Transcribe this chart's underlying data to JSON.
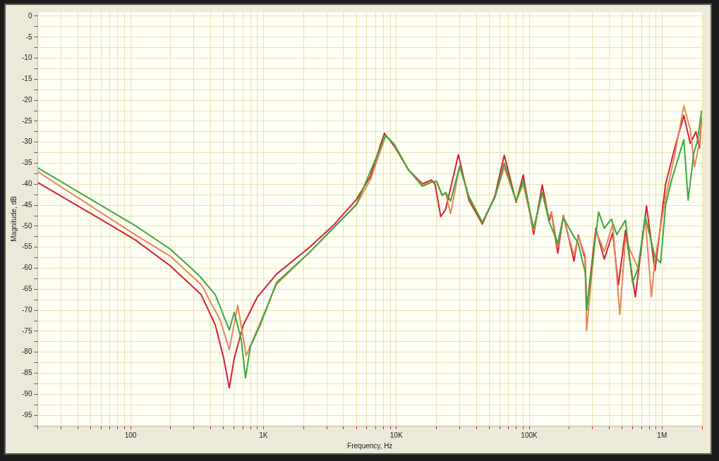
{
  "chart_data": {
    "type": "line",
    "xlabel": "Frequency, Hz",
    "ylabel": "Magnitude, dB",
    "log": "x",
    "grid": true,
    "marker": "none",
    "xlim": [
      20,
      2000000
    ],
    "ylim": [
      -97.5,
      1
    ],
    "xticks": [
      {
        "value": 20,
        "label": null
      },
      {
        "value": 30,
        "label": null
      },
      {
        "value": 40,
        "label": null
      },
      {
        "value": 50,
        "label": null
      },
      {
        "value": 60,
        "label": null
      },
      {
        "value": 70,
        "label": null
      },
      {
        "value": 80,
        "label": null
      },
      {
        "value": 90,
        "label": null
      },
      100,
      {
        "value": 200,
        "label": null
      },
      {
        "value": 300,
        "label": null
      },
      {
        "value": 400,
        "label": null
      },
      {
        "value": 500,
        "label": null
      },
      {
        "value": 600,
        "label": null
      },
      {
        "value": 700,
        "label": null
      },
      {
        "value": 800,
        "label": null
      },
      {
        "value": 900,
        "label": null
      },
      {
        "value": 1000,
        "label": "1K"
      },
      {
        "value": 2000,
        "label": null
      },
      {
        "value": 3000,
        "label": null
      },
      {
        "value": 4000,
        "label": null
      },
      {
        "value": 5000,
        "label": null
      },
      {
        "value": 6000,
        "label": null
      },
      {
        "value": 7000,
        "label": null
      },
      {
        "value": 8000,
        "label": null
      },
      {
        "value": 9000,
        "label": null
      },
      {
        "value": 10000,
        "label": "10K"
      },
      {
        "value": 20000,
        "label": null
      },
      {
        "value": 30000,
        "label": null
      },
      {
        "value": 40000,
        "label": null
      },
      {
        "value": 50000,
        "label": null
      },
      {
        "value": 60000,
        "label": null
      },
      {
        "value": 70000,
        "label": null
      },
      {
        "value": 80000,
        "label": null
      },
      {
        "value": 90000,
        "label": null
      },
      {
        "value": 100000,
        "label": "100K"
      },
      {
        "value": 200000,
        "label": null
      },
      {
        "value": 300000,
        "label": null
      },
      {
        "value": 400000,
        "label": null
      },
      {
        "value": 500000,
        "label": null
      },
      {
        "value": 600000,
        "label": null
      },
      {
        "value": 700000,
        "label": null
      },
      {
        "value": 800000,
        "label": null
      },
      {
        "value": 900000,
        "label": null
      },
      {
        "value": 1000000,
        "label": "1M"
      },
      {
        "value": 2000000,
        "label": null
      }
    ],
    "yticks": [
      0,
      {
        "value": -2.5,
        "label": null
      },
      -5,
      {
        "value": -7.5,
        "label": null
      },
      -10,
      {
        "value": -12.5,
        "label": null
      },
      -15,
      {
        "value": -17.5,
        "label": null
      },
      -20,
      {
        "value": -22.5,
        "label": null
      },
      -25,
      {
        "value": -27.5,
        "label": null
      },
      -30,
      {
        "value": -32.5,
        "label": null
      },
      -35,
      {
        "value": -37.5,
        "label": null
      },
      -40,
      {
        "value": -42.5,
        "label": null
      },
      -45,
      {
        "value": -47.5,
        "label": null
      },
      -50,
      {
        "value": -52.5,
        "label": null
      },
      -55,
      {
        "value": -57.5,
        "label": null
      },
      -60,
      {
        "value": -62.5,
        "label": null
      },
      -65,
      {
        "value": -67.5,
        "label": null
      },
      -70,
      {
        "value": -72.5,
        "label": null
      },
      -75,
      {
        "value": -77.5,
        "label": null
      },
      -80,
      {
        "value": -82.5,
        "label": null
      },
      -85,
      {
        "value": -87.5,
        "label": null
      },
      -90,
      {
        "value": -92.5,
        "label": null
      },
      -95,
      {
        "value": -97.5,
        "label": null
      }
    ],
    "series": [
      {
        "color": "#3aa83a",
        "x": [
          20,
          109,
          200,
          327,
          434,
          553,
          603,
          680,
          733,
          798,
          946,
          1254,
          2225,
          4990,
          8320,
          9630,
          12300,
          15700,
          18400,
          20050,
          22100,
          23500,
          25600,
          30000,
          35200,
          44400,
          55300,
          64900,
          79800,
          90200,
          108000,
          125300,
          141600,
          164000,
          180800,
          217300,
          233800,
          264000,
          270500,
          333000,
          367500,
          415000,
          457000,
          530000,
          599000,
          660000,
          746000,
          885000,
          975000,
          1064000,
          1172000,
          1459000,
          1571000,
          1733000,
          1842000,
          1982000
        ],
        "values": [
          -36.1,
          -49.9,
          -55.5,
          -61.7,
          -66.3,
          -74.7,
          -70.5,
          -76.9,
          -86.1,
          -78.6,
          -73.5,
          -63.4,
          -56.2,
          -44.9,
          -28.4,
          -30.5,
          -36.5,
          -40.5,
          -39.5,
          -39.3,
          -42.7,
          -42,
          -44,
          -35.7,
          -43,
          -49.1,
          -43,
          -35,
          -44,
          -39,
          -50.5,
          -42,
          -49,
          -54,
          -48,
          -52.5,
          -54,
          -61,
          -70,
          -46.6,
          -50.5,
          -48.3,
          -52,
          -48.6,
          -63.4,
          -60,
          -47.7,
          -57.3,
          -58.7,
          -44.9,
          -39.3,
          -29.4,
          -43.8,
          -32.6,
          -29.8,
          -22.5
        ]
      },
      {
        "color": "#e8845a",
        "x": [
          20,
          109,
          200,
          340,
          472,
          553,
          640,
          742,
          869,
          1254,
          2225,
          4990,
          6370,
          8320,
          9630,
          12300,
          15700,
          18400,
          20050,
          22100,
          23500,
          25600,
          30000,
          35200,
          44400,
          55300,
          64900,
          79800,
          90200,
          108000,
          125300,
          141600,
          146900,
          164000,
          180800,
          194500,
          217300,
          233800,
          264000,
          270500,
          317000,
          367500,
          425000,
          481000,
          530000,
          599000,
          660000,
          746000,
          832000,
          885000,
          1064000,
          1246000,
          1459000,
          1629000,
          1754000,
          1911000,
          1982000
        ],
        "values": [
          -37,
          -52.1,
          -57.2,
          -63.9,
          -72.3,
          -79.4,
          -68.8,
          -80.8,
          -75.7,
          -63.8,
          -56.2,
          -44.9,
          -39,
          -28.4,
          -30.5,
          -36.5,
          -40.2,
          -39.5,
          -39.3,
          -42.5,
          -42,
          -47,
          -35.7,
          -43,
          -49.1,
          -43,
          -36,
          -44,
          -40,
          -51,
          -42,
          -48,
          -46.6,
          -55,
          -47.5,
          -51.6,
          -57,
          -52.5,
          -57,
          -74.9,
          -51,
          -56,
          -49.5,
          -71,
          -53,
          -57,
          -60,
          -48,
          -66.8,
          -58,
          -43,
          -33,
          -21.3,
          -27,
          -35.9,
          -30,
          -24
        ]
      },
      {
        "color": "#d42030",
        "x": [
          20,
          73,
          109,
          200,
          340,
          434,
          502,
          553,
          603,
          706,
          902,
          1254,
          2225,
          3334,
          4990,
          6370,
          7555,
          8130,
          9630,
          12300,
          15700,
          18400,
          19580,
          21600,
          23500,
          29300,
          35200,
          44400,
          55300,
          64900,
          79800,
          90200,
          108000,
          125300,
          141600,
          146900,
          164000,
          180800,
          194500,
          217300,
          233800,
          264000,
          270500,
          317000,
          367500,
          425000,
          469000,
          530000,
          629000,
          764000,
          885000,
          1064000,
          1246000,
          1459000,
          1629000,
          1798000,
          1911000,
          1982000
        ],
        "values": [
          -39.6,
          -50,
          -53.3,
          -59.5,
          -66.3,
          -73.5,
          -81.4,
          -88.5,
          -81.4,
          -73.5,
          -66.8,
          -61.4,
          -55,
          -49.9,
          -43.7,
          -38.2,
          -30.9,
          -27.9,
          -30.9,
          -36.5,
          -39.9,
          -39,
          -40,
          -47.7,
          -46,
          -33,
          -43.8,
          -49.5,
          -42.7,
          -33.1,
          -44.3,
          -37.8,
          -51.9,
          -40.2,
          -48.8,
          -46.6,
          -56.4,
          -47.4,
          -51.6,
          -58.3,
          -52.1,
          -57.8,
          -70,
          -50.5,
          -57.8,
          -51.6,
          -64,
          -51,
          -66.8,
          -45.2,
          -60.5,
          -39.9,
          -31.4,
          -23.6,
          -30.3,
          -27.5,
          -31.4,
          -24.2
        ]
      }
    ]
  }
}
